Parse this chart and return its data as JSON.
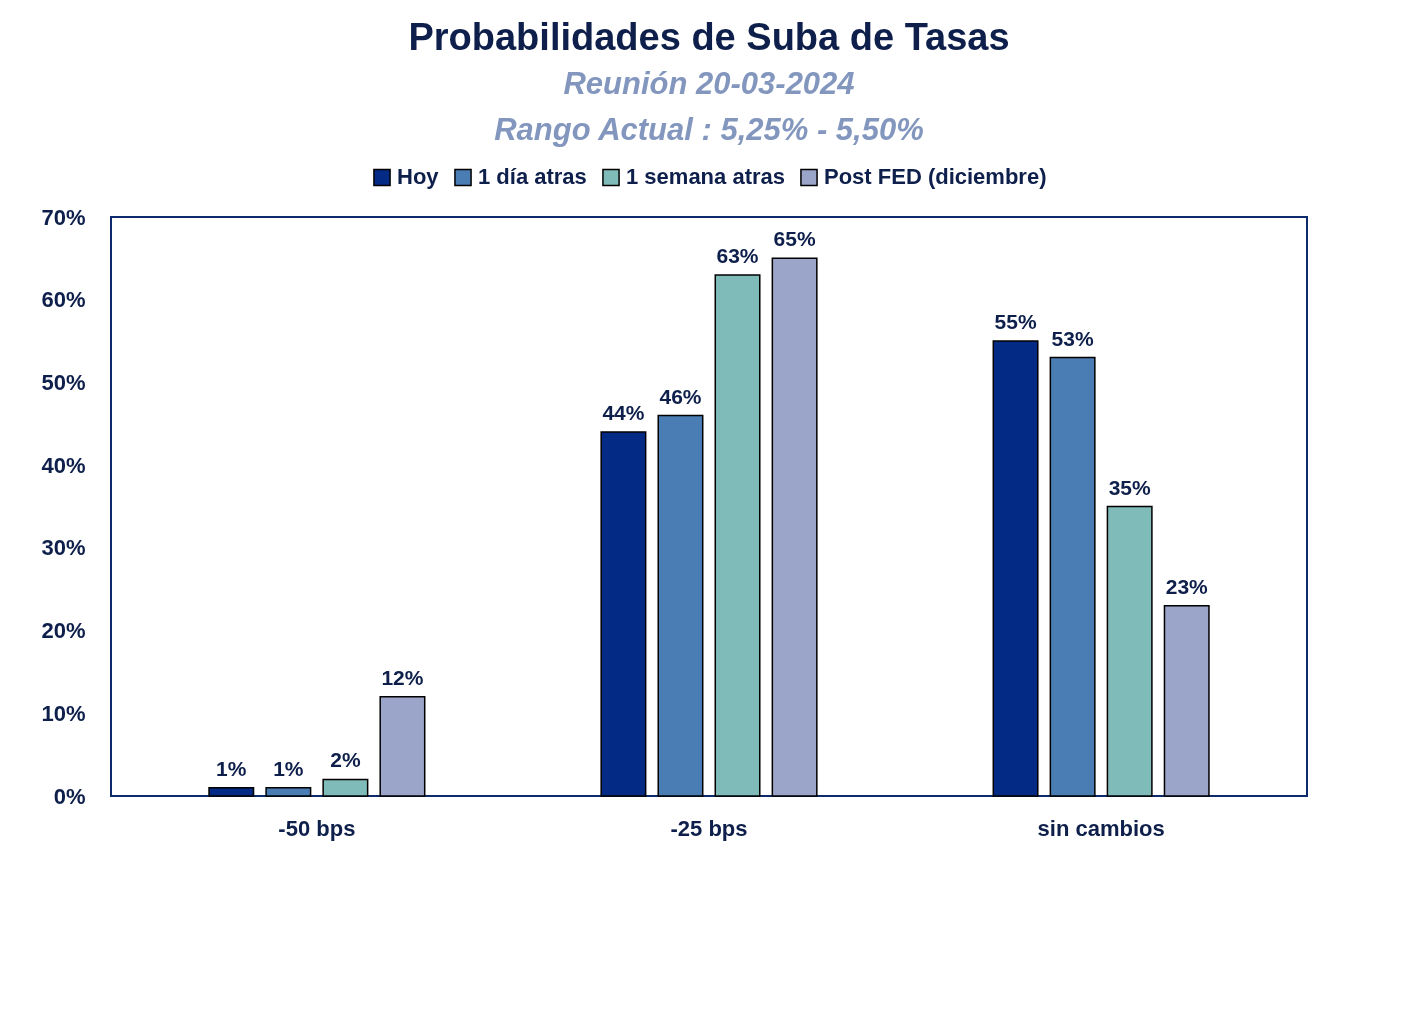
{
  "chart_data": {
    "type": "bar",
    "title": "Probabilidades de Suba de Tasas",
    "subtitle": "Reunión 20-03-2024\nRango Actual : 5,25% - 5,50%",
    "categories": [
      "-50 bps",
      "-25 bps",
      "sin cambios"
    ],
    "series": [
      {
        "name": "Hoy",
        "color": "#032a85",
        "values": [
          1,
          44,
          55
        ],
        "value_labels": [
          "1%",
          "44%",
          "55%"
        ]
      },
      {
        "name": "1 día atras",
        "color": "#4a7db4",
        "values": [
          1,
          46,
          53
        ],
        "value_labels": [
          "1%",
          "46%",
          "53%"
        ]
      },
      {
        "name": "1 semana atras",
        "color": "#7fbbb9",
        "values": [
          2,
          63,
          35
        ],
        "value_labels": [
          "2%",
          "63%",
          "35%"
        ]
      },
      {
        "name": "Post FED (diciembre)",
        "color": "#9ba4c9",
        "values": [
          12,
          65,
          23
        ],
        "value_labels": [
          "12%",
          "65%",
          "23%"
        ]
      }
    ],
    "ylim": [
      0,
      70
    ],
    "yticks": [
      {
        "value": 0,
        "label": "0%"
      },
      {
        "value": 10,
        "label": "10%"
      },
      {
        "value": 20,
        "label": "20%"
      },
      {
        "value": 30,
        "label": "30%"
      },
      {
        "value": 40,
        "label": "40%"
      },
      {
        "value": 50,
        "label": "50%"
      },
      {
        "value": 60,
        "label": "60%"
      },
      {
        "value": 70,
        "label": "70%"
      }
    ],
    "legend": "top"
  }
}
